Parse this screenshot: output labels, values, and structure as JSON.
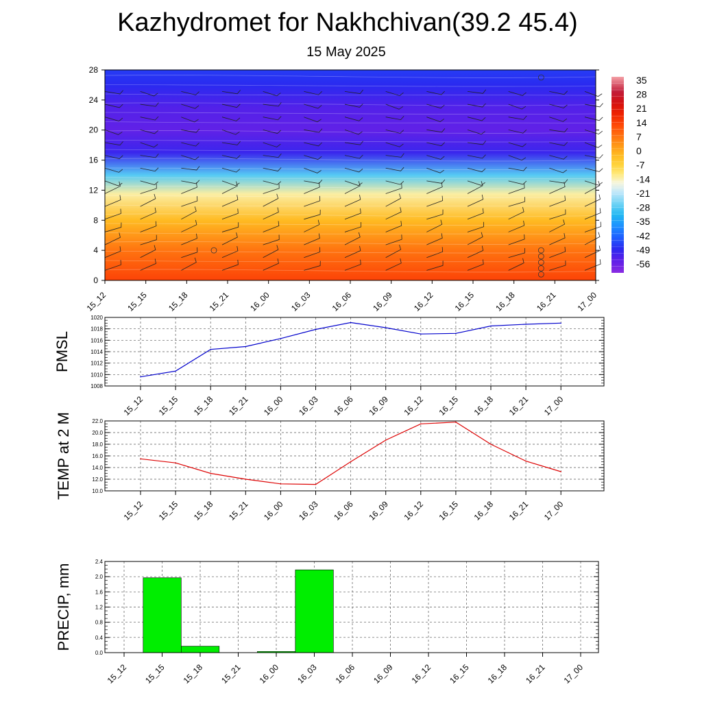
{
  "header": {
    "title": "Kazhydromet for Nakhchivan(39.2 45.4)",
    "subtitle": "15 May 2025"
  },
  "chart_data": [
    {
      "id": "cross-section",
      "type": "heatmap",
      "title": "",
      "xlabel": "",
      "ylabel": "",
      "x": [
        "15_12",
        "15_15",
        "15_18",
        "15_21",
        "16_00",
        "16_03",
        "16_06",
        "16_09",
        "16_12",
        "16_15",
        "16_18",
        "16_21",
        "17_00"
      ],
      "y_ticks": [
        0,
        4,
        8,
        12,
        16,
        20,
        24,
        28
      ],
      "ylim": [
        0,
        28
      ],
      "colorbar": {
        "labels": [
          35,
          28,
          21,
          14,
          7,
          0,
          -7,
          -14,
          -21,
          -28,
          -35,
          -42,
          -49,
          -56
        ],
        "range": [
          -63,
          42
        ]
      },
      "overlay": "wind barbs",
      "temperature_field_summary": [
        {
          "level": 0,
          "value": 17
        },
        {
          "level": 4,
          "value": 10
        },
        {
          "level": 8,
          "value": 0
        },
        {
          "level": 11.5,
          "value": -12
        },
        {
          "level": 14,
          "value": -28
        },
        {
          "level": 17,
          "value": -52
        },
        {
          "level": 20,
          "value": -57
        },
        {
          "level": 23,
          "value": -55
        },
        {
          "level": 26,
          "value": -50
        },
        {
          "level": 28,
          "value": -48
        }
      ]
    },
    {
      "id": "pmsl",
      "type": "line",
      "title": "",
      "xlabel": "",
      "ylabel": "PMSL",
      "x": [
        "15_12",
        "15_15",
        "15_18",
        "15_21",
        "16_00",
        "16_03",
        "16_06",
        "16_09",
        "16_12",
        "16_15",
        "16_18",
        "16_21",
        "17_00"
      ],
      "series": [
        {
          "values": [
            1009.6,
            1010.6,
            1014.4,
            1014.9,
            1016.3,
            1017.9,
            1019.1,
            1018.2,
            1017.1,
            1017.2,
            1018.5,
            1018.8,
            1019.0
          ],
          "color": "#0000cc"
        }
      ],
      "ylim": [
        1008,
        1020
      ],
      "y_ticks": [
        1008,
        1010,
        1012,
        1014,
        1016,
        1018,
        1020
      ],
      "grid": true
    },
    {
      "id": "temp2m",
      "type": "line",
      "title": "",
      "xlabel": "",
      "ylabel": "TEMP at 2 M",
      "x": [
        "15_12",
        "15_15",
        "15_18",
        "15_21",
        "16_00",
        "16_03",
        "16_06",
        "16_09",
        "16_12",
        "16_15",
        "16_18",
        "16_21",
        "17_00"
      ],
      "series": [
        {
          "values": [
            15.5,
            14.8,
            13.0,
            12.0,
            11.2,
            11.1,
            15.0,
            18.7,
            21.5,
            21.8,
            18.0,
            15.1,
            13.3
          ],
          "color": "#dd0000"
        }
      ],
      "ylim": [
        10.0,
        22.0
      ],
      "y_ticks": [
        10.0,
        12.0,
        14.0,
        16.0,
        18.0,
        20.0,
        22.0
      ],
      "grid": true
    },
    {
      "id": "precip",
      "type": "bar",
      "title": "",
      "xlabel": "",
      "ylabel": "PRECIP, mm",
      "categories": [
        "15_12",
        "15_15",
        "15_18",
        "15_21",
        "16_00",
        "16_03",
        "16_06",
        "16_09",
        "16_12",
        "16_15",
        "16_18",
        "16_21",
        "17_00"
      ],
      "values": [
        0,
        1.97,
        0.17,
        0,
        0.03,
        2.18,
        0,
        0,
        0,
        0,
        0,
        0,
        0
      ],
      "color": "#00ee00",
      "ylim": [
        0,
        2.4
      ],
      "y_ticks": [
        0.0,
        0.4,
        0.8,
        1.2,
        1.6,
        2.0,
        2.4
      ],
      "grid": true
    }
  ]
}
